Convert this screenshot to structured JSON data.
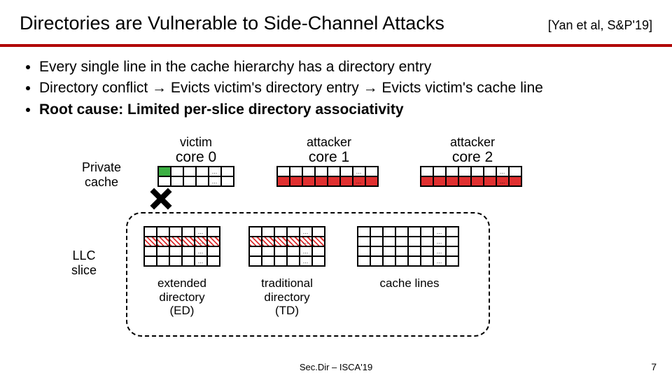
{
  "title": "Directories are Vulnerable to Side-Channel Attacks",
  "citation": "[Yan et al, S&P'19]",
  "bullets": [
    "Every single line in the cache hierarchy has a directory entry",
    "Directory conflict → Evicts victim's directory entry → Evicts victim's cache line",
    "Root cause: Limited per-slice directory associativity"
  ],
  "labels": {
    "private_cache": "Private\ncache",
    "llc_slice": "LLC\nslice",
    "victim": "victim",
    "core0": "core 0",
    "attacker1_a": "attacker",
    "core1": "core 1",
    "attacker2_a": "attacker",
    "core2": "core 2",
    "ed": "extended\ndirectory\n(ED)",
    "td": "traditional\ndirectory\n(TD)",
    "cl": "cache lines"
  },
  "footer": "Sec.Dir – ISCA'19",
  "pagenum": "7",
  "style": {
    "hr_color": "#b00000",
    "red": "#e03030",
    "green": "#3cb043",
    "fonts": {
      "title": 27,
      "citation": 18,
      "bullet": 21,
      "label": 18,
      "footer": 13
    }
  },
  "private_caches": {
    "core0": {
      "rows": 2,
      "cols": 6,
      "dots_col": 4,
      "special": {
        "0,0": "green"
      }
    },
    "core1": {
      "rows": 2,
      "cols": 8,
      "dots_col": 6,
      "row_styles": {
        "1": "red"
      }
    },
    "core2": {
      "rows": 2,
      "cols": 8,
      "dots_col": 6,
      "row_styles": {
        "1": "red"
      }
    }
  },
  "llc": {
    "ed": {
      "rows": 4,
      "cols": 6,
      "dots_col": 4,
      "row_styles": {
        "1": "hatch"
      }
    },
    "td": {
      "rows": 4,
      "cols": 6,
      "dots_col": 4,
      "row_styles": {
        "1": "hatch"
      }
    },
    "cl": {
      "rows": 4,
      "cols": 8,
      "dots_col": 6
    }
  }
}
